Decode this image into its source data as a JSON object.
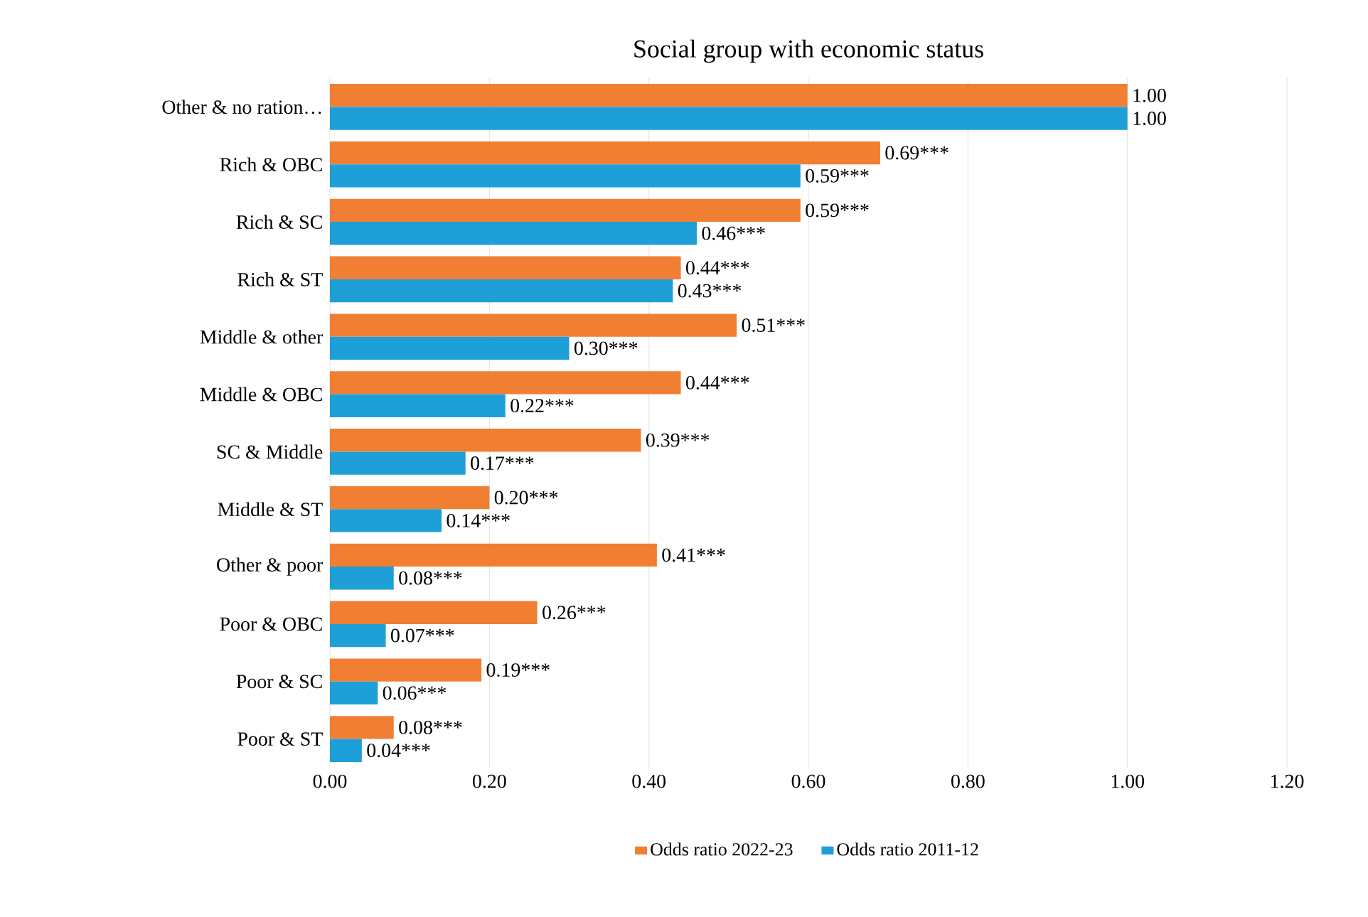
{
  "chart_data": {
    "type": "bar",
    "orientation": "horizontal",
    "title": "Social group with economic status",
    "categories": [
      "Other & no ration…",
      "Rich & OBC",
      "Rich & SC",
      "Rich & ST",
      "Middle & other",
      "Middle & OBC",
      "SC & Middle",
      "Middle & ST",
      "Other & poor",
      "Poor & OBC",
      "Poor & SC",
      "Poor & ST"
    ],
    "series": [
      {
        "name": "Odds ratio 2022-23",
        "color": "#f07f33",
        "values": [
          1.0,
          0.69,
          0.59,
          0.44,
          0.51,
          0.44,
          0.39,
          0.2,
          0.41,
          0.26,
          0.19,
          0.08
        ],
        "value_labels": [
          "1.00",
          "0.69***",
          "0.59***",
          "0.44***",
          "0.51***",
          "0.44***",
          "0.39***",
          "0.20***",
          "0.41***",
          "0.26***",
          "0.19***",
          "0.08***"
        ]
      },
      {
        "name": "Odds ratio 2011-12",
        "color": "#1f9fd8",
        "values": [
          1.0,
          0.59,
          0.46,
          0.43,
          0.3,
          0.22,
          0.17,
          0.14,
          0.08,
          0.07,
          0.06,
          0.04
        ],
        "value_labels": [
          "1.00",
          "0.59***",
          "0.46***",
          "0.43***",
          "0.30***",
          "0.22***",
          "0.17***",
          "0.14***",
          "0.08***",
          "0.07***",
          "0.06***",
          "0.04***"
        ]
      }
    ],
    "xlim": [
      0,
      1.2
    ],
    "xticks": [
      {
        "value": 0,
        "label": "0.00"
      },
      {
        "value": 0.2,
        "label": "0.20"
      },
      {
        "value": 0.4,
        "label": "0.40"
      },
      {
        "value": 0.6,
        "label": "0.60"
      },
      {
        "value": 0.8,
        "label": "0.80"
      },
      {
        "value": 1.0,
        "label": "1.00"
      },
      {
        "value": 1.2,
        "label": "1.20"
      }
    ],
    "grid": "x",
    "legend": "bottom"
  }
}
